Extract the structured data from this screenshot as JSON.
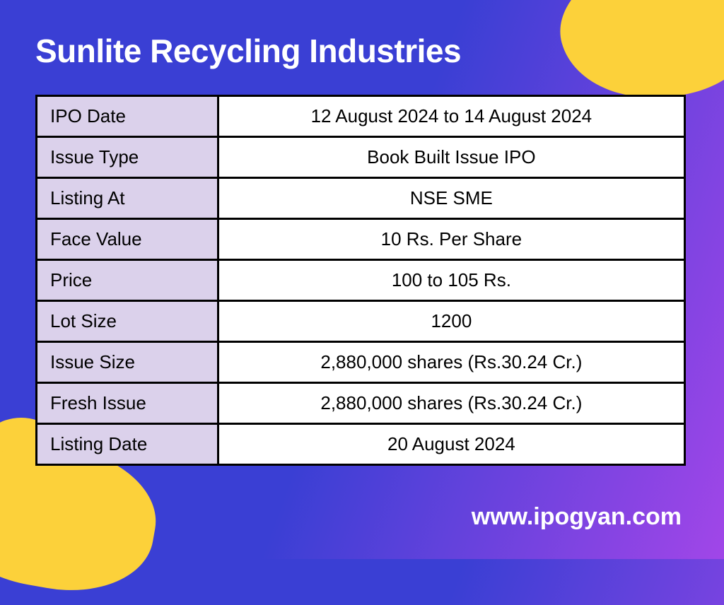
{
  "title": "Sunlite Recycling Industries",
  "table": {
    "type": "table",
    "label_bg_color": "#dbd1eb",
    "value_bg_color": "#ffffff",
    "border_color": "#000000",
    "border_width": 3,
    "font_size": 26,
    "label_align": "left",
    "value_align": "center",
    "label_col_width_pct": 28,
    "rows": [
      {
        "label": "IPO Date",
        "value": "12 August 2024 to 14 August 2024"
      },
      {
        "label": "Issue Type",
        "value": "Book Built Issue IPO"
      },
      {
        "label": "Listing At",
        "value": "NSE SME"
      },
      {
        "label": "Face Value",
        "value": "10 Rs. Per Share"
      },
      {
        "label": "Price",
        "value": "100 to 105 Rs."
      },
      {
        "label": "Lot Size",
        "value": "1200"
      },
      {
        "label": "Issue Size",
        "value": "2,880,000  shares (Rs.30.24 Cr.)"
      },
      {
        "label": "Fresh Issue",
        "value": "2,880,000 shares (Rs.30.24 Cr.)"
      },
      {
        "label": "Listing Date",
        "value": "20 August 2024"
      }
    ]
  },
  "footer_url": "www.ipogyan.com",
  "colors": {
    "gradient_start": "#3a3fd4",
    "gradient_end": "#a146e8",
    "accent_blob": "#fcd13a",
    "title_color": "#ffffff",
    "footer_color": "#ffffff"
  },
  "typography": {
    "title_fontsize": 46,
    "title_weight": 800,
    "footer_fontsize": 34,
    "footer_weight": 700
  }
}
